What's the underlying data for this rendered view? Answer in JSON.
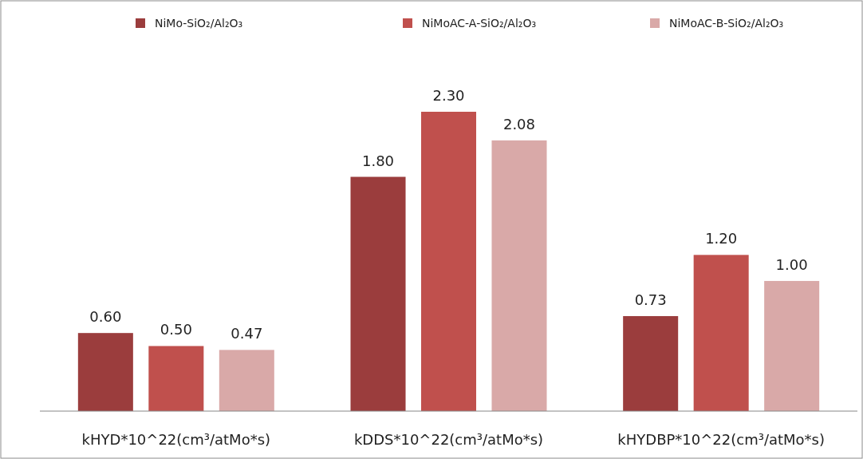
{
  "chart_data": {
    "type": "bar",
    "categories": [
      "kHYD*10^22(cm³/atMo*s)",
      "kDDS*10^22(cm³/atMo*s)",
      "kHYDBP*10^22(cm³/atMo*s)"
    ],
    "series": [
      {
        "name": "NiMo-SiO₂/Al₂O₃",
        "color": "#9b3d3d",
        "values": [
          0.6,
          1.8,
          0.73
        ],
        "value_labels": [
          "0.60",
          "1.80",
          "0.73"
        ]
      },
      {
        "name": "NiMoAC-A-SiO₂/Al₂O₃",
        "color": "#c0504d",
        "values": [
          0.5,
          2.3,
          1.2
        ],
        "value_labels": [
          "0.50",
          "2.30",
          "1.20"
        ]
      },
      {
        "name": "NiMoAC-B-SiO₂/Al₂O₃",
        "color": "#d9a9a8",
        "values": [
          0.47,
          2.08,
          1.0
        ],
        "value_labels": [
          "0.47",
          "2.08",
          "1.00"
        ]
      }
    ],
    "legend": "top"
  }
}
